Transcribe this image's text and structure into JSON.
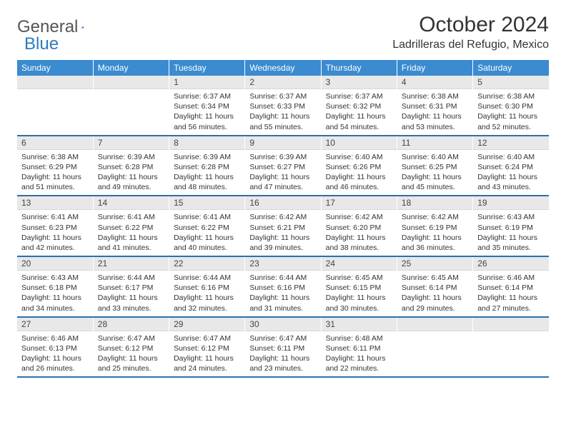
{
  "brand": {
    "part1": "General",
    "part2": "Blue"
  },
  "title": "October 2024",
  "location": "Ladrilleras del Refugio, Mexico",
  "colors": {
    "header_bg": "#3a8bd0",
    "row_border": "#2e6fa8",
    "daynum_bg": "#e8e8e8"
  },
  "weekdays": [
    "Sunday",
    "Monday",
    "Tuesday",
    "Wednesday",
    "Thursday",
    "Friday",
    "Saturday"
  ],
  "weeks": [
    [
      null,
      null,
      {
        "n": "1",
        "sr": "6:37 AM",
        "ss": "6:34 PM",
        "dl": "11 hours and 56 minutes."
      },
      {
        "n": "2",
        "sr": "6:37 AM",
        "ss": "6:33 PM",
        "dl": "11 hours and 55 minutes."
      },
      {
        "n": "3",
        "sr": "6:37 AM",
        "ss": "6:32 PM",
        "dl": "11 hours and 54 minutes."
      },
      {
        "n": "4",
        "sr": "6:38 AM",
        "ss": "6:31 PM",
        "dl": "11 hours and 53 minutes."
      },
      {
        "n": "5",
        "sr": "6:38 AM",
        "ss": "6:30 PM",
        "dl": "11 hours and 52 minutes."
      }
    ],
    [
      {
        "n": "6",
        "sr": "6:38 AM",
        "ss": "6:29 PM",
        "dl": "11 hours and 51 minutes."
      },
      {
        "n": "7",
        "sr": "6:39 AM",
        "ss": "6:28 PM",
        "dl": "11 hours and 49 minutes."
      },
      {
        "n": "8",
        "sr": "6:39 AM",
        "ss": "6:28 PM",
        "dl": "11 hours and 48 minutes."
      },
      {
        "n": "9",
        "sr": "6:39 AM",
        "ss": "6:27 PM",
        "dl": "11 hours and 47 minutes."
      },
      {
        "n": "10",
        "sr": "6:40 AM",
        "ss": "6:26 PM",
        "dl": "11 hours and 46 minutes."
      },
      {
        "n": "11",
        "sr": "6:40 AM",
        "ss": "6:25 PM",
        "dl": "11 hours and 45 minutes."
      },
      {
        "n": "12",
        "sr": "6:40 AM",
        "ss": "6:24 PM",
        "dl": "11 hours and 43 minutes."
      }
    ],
    [
      {
        "n": "13",
        "sr": "6:41 AM",
        "ss": "6:23 PM",
        "dl": "11 hours and 42 minutes."
      },
      {
        "n": "14",
        "sr": "6:41 AM",
        "ss": "6:22 PM",
        "dl": "11 hours and 41 minutes."
      },
      {
        "n": "15",
        "sr": "6:41 AM",
        "ss": "6:22 PM",
        "dl": "11 hours and 40 minutes."
      },
      {
        "n": "16",
        "sr": "6:42 AM",
        "ss": "6:21 PM",
        "dl": "11 hours and 39 minutes."
      },
      {
        "n": "17",
        "sr": "6:42 AM",
        "ss": "6:20 PM",
        "dl": "11 hours and 38 minutes."
      },
      {
        "n": "18",
        "sr": "6:42 AM",
        "ss": "6:19 PM",
        "dl": "11 hours and 36 minutes."
      },
      {
        "n": "19",
        "sr": "6:43 AM",
        "ss": "6:19 PM",
        "dl": "11 hours and 35 minutes."
      }
    ],
    [
      {
        "n": "20",
        "sr": "6:43 AM",
        "ss": "6:18 PM",
        "dl": "11 hours and 34 minutes."
      },
      {
        "n": "21",
        "sr": "6:44 AM",
        "ss": "6:17 PM",
        "dl": "11 hours and 33 minutes."
      },
      {
        "n": "22",
        "sr": "6:44 AM",
        "ss": "6:16 PM",
        "dl": "11 hours and 32 minutes."
      },
      {
        "n": "23",
        "sr": "6:44 AM",
        "ss": "6:16 PM",
        "dl": "11 hours and 31 minutes."
      },
      {
        "n": "24",
        "sr": "6:45 AM",
        "ss": "6:15 PM",
        "dl": "11 hours and 30 minutes."
      },
      {
        "n": "25",
        "sr": "6:45 AM",
        "ss": "6:14 PM",
        "dl": "11 hours and 29 minutes."
      },
      {
        "n": "26",
        "sr": "6:46 AM",
        "ss": "6:14 PM",
        "dl": "11 hours and 27 minutes."
      }
    ],
    [
      {
        "n": "27",
        "sr": "6:46 AM",
        "ss": "6:13 PM",
        "dl": "11 hours and 26 minutes."
      },
      {
        "n": "28",
        "sr": "6:47 AM",
        "ss": "6:12 PM",
        "dl": "11 hours and 25 minutes."
      },
      {
        "n": "29",
        "sr": "6:47 AM",
        "ss": "6:12 PM",
        "dl": "11 hours and 24 minutes."
      },
      {
        "n": "30",
        "sr": "6:47 AM",
        "ss": "6:11 PM",
        "dl": "11 hours and 23 minutes."
      },
      {
        "n": "31",
        "sr": "6:48 AM",
        "ss": "6:11 PM",
        "dl": "11 hours and 22 minutes."
      },
      null,
      null
    ]
  ],
  "labels": {
    "sunrise": "Sunrise:",
    "sunset": "Sunset:",
    "daylight": "Daylight:"
  }
}
